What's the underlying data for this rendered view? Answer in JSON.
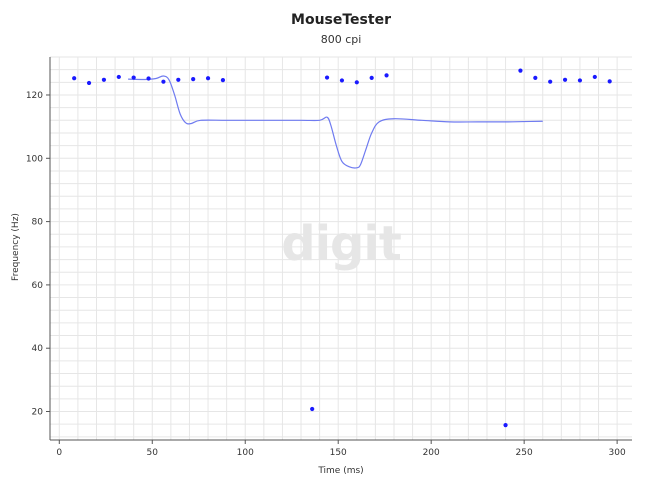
{
  "chart_data": {
    "type": "scatter",
    "title": "MouseTester",
    "subtitle": "800 cpi",
    "xlabel": "Time (ms)",
    "ylabel": "Frequency (Hz)",
    "xlim": [
      -5,
      308
    ],
    "ylim": [
      11,
      132
    ],
    "xticks": [
      0,
      50,
      100,
      150,
      200,
      250,
      300
    ],
    "yticks": [
      20,
      40,
      60,
      80,
      100,
      120
    ],
    "grid": true,
    "watermark": "digit",
    "colors": {
      "points": "#1a1aff",
      "line": "#6f7bf0",
      "grid": "#e6e6e6",
      "axis": "#555555"
    },
    "series": [
      {
        "type": "scatter",
        "points": [
          [
            8,
            125.3
          ],
          [
            16,
            123.8
          ],
          [
            24,
            124.8
          ],
          [
            32,
            125.7
          ],
          [
            40,
            125.5
          ],
          [
            48,
            125.2
          ],
          [
            56,
            124.2
          ],
          [
            64,
            124.8
          ],
          [
            72,
            125.0
          ],
          [
            80,
            125.3
          ],
          [
            88,
            124.7
          ],
          [
            136,
            20.8
          ],
          [
            144,
            125.5
          ],
          [
            152,
            124.6
          ],
          [
            160,
            124.0
          ],
          [
            168,
            125.4
          ],
          [
            176,
            126.2
          ],
          [
            240,
            15.7
          ],
          [
            248,
            127.7
          ],
          [
            256,
            125.4
          ],
          [
            264,
            124.2
          ],
          [
            272,
            124.8
          ],
          [
            280,
            124.6
          ],
          [
            288,
            125.7
          ],
          [
            296,
            124.3
          ]
        ]
      },
      {
        "type": "line",
        "points": [
          [
            37,
            125.0
          ],
          [
            46,
            124.9
          ],
          [
            52,
            125.2
          ],
          [
            56,
            126.0
          ],
          [
            59,
            124.8
          ],
          [
            62,
            120.0
          ],
          [
            65,
            114.0
          ],
          [
            68,
            111.2
          ],
          [
            71,
            111.0
          ],
          [
            76,
            112.0
          ],
          [
            90,
            112.0
          ],
          [
            110,
            112.0
          ],
          [
            130,
            112.0
          ],
          [
            140,
            112.0
          ],
          [
            144,
            113.0
          ],
          [
            146,
            110.5
          ],
          [
            149,
            104.0
          ],
          [
            152,
            99.0
          ],
          [
            156,
            97.3
          ],
          [
            160,
            97.0
          ],
          [
            162,
            98.0
          ],
          [
            165,
            103.0
          ],
          [
            168,
            108.0
          ],
          [
            172,
            111.5
          ],
          [
            180,
            112.5
          ],
          [
            195,
            112.0
          ],
          [
            210,
            111.5
          ],
          [
            225,
            111.5
          ],
          [
            240,
            111.5
          ],
          [
            250,
            111.6
          ],
          [
            260,
            111.7
          ]
        ]
      }
    ]
  }
}
